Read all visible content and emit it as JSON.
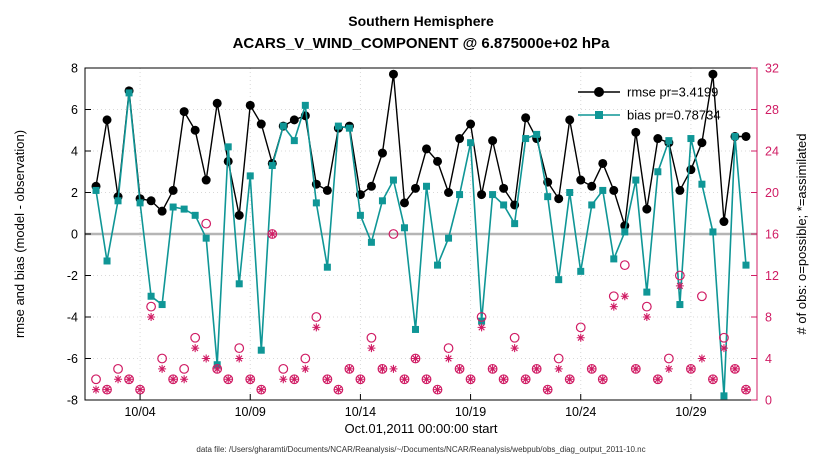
{
  "title": {
    "line1": "Southern Hemisphere",
    "line2": "ACARS_V_WIND_COMPONENT @ 6.875000e+02 hPa"
  },
  "footer": {
    "data_file": "data file: /Users/gharamti/Documents/NCAR/Reanalysis/~/Documents/NCAR/Reanalysis/webpub/obs_diag_output_2011-10.nc"
  },
  "colors": {
    "rmse": "#000000",
    "bias": "#0f9696",
    "obs": "#d01c64",
    "zero_line": "#b5b5b5",
    "grid": "#d9d9d9"
  },
  "chart_data": {
    "type": "line",
    "title": "Southern Hemisphere",
    "subtitle": "ACARS_V_WIND_COMPONENT @ 6.875000e+02 hPa",
    "xlabel": "Oct.01,2011 00:00:00 start",
    "ylabel_left": "rmse and bias (model - observation)",
    "ylabel_right": "# of obs: o=possible; *=assimilated",
    "xlim": [
      1.5,
      32
    ],
    "ylim_left": [
      -8,
      8
    ],
    "ylim_right": [
      0,
      32
    ],
    "xticks": [
      4,
      9,
      14,
      19,
      24,
      29
    ],
    "xtick_labels": [
      "10/04",
      "10/09",
      "10/14",
      "10/19",
      "10/24",
      "10/29"
    ],
    "yticks_left": [
      -8,
      -6,
      -4,
      -2,
      0,
      2,
      4,
      6,
      8
    ],
    "yticks_right": [
      0,
      4,
      8,
      12,
      16,
      20,
      24,
      28,
      32
    ],
    "grid": true,
    "legend_position": "top-right",
    "zero_line": {
      "y": 0
    },
    "x_days": [
      2,
      2.5,
      3,
      3.5,
      4,
      4.5,
      5,
      5.5,
      6,
      6.5,
      7,
      7.5,
      8,
      8.5,
      9,
      9.5,
      10,
      10.5,
      11,
      11.5,
      12,
      12.5,
      13,
      13.5,
      14,
      14.5,
      15,
      15.5,
      16,
      16.5,
      17,
      17.5,
      18,
      18.5,
      19,
      19.5,
      20,
      20.5,
      21,
      21.5,
      22,
      22.5,
      23,
      23.5,
      24,
      24.5,
      25,
      25.5,
      26,
      26.5,
      27,
      27.5,
      28,
      28.5,
      29,
      29.5,
      30,
      30.5,
      31,
      31.5
    ],
    "series": [
      {
        "name": "rmse pr=3.4199",
        "type": "line",
        "marker": "circle-filled",
        "axis": "left",
        "color": "#000000",
        "values": [
          2.3,
          5.5,
          1.8,
          6.9,
          1.7,
          1.6,
          1.1,
          2.1,
          5.9,
          5.0,
          2.6,
          6.3,
          3.5,
          0.9,
          6.2,
          5.3,
          3.4,
          5.2,
          5.5,
          5.7,
          2.4,
          2.1,
          5.1,
          5.2,
          1.9,
          2.3,
          3.9,
          7.7,
          1.5,
          2.2,
          4.1,
          3.5,
          2.0,
          4.6,
          5.3,
          1.9,
          4.5,
          2.2,
          1.4,
          5.6,
          4.6,
          2.5,
          1.7,
          5.5,
          2.6,
          2.3,
          3.4,
          2.1,
          0.4,
          4.9,
          1.2,
          4.6,
          4.4,
          2.1,
          3.1,
          4.4,
          7.7,
          0.6,
          4.7,
          4.7
        ]
      },
      {
        "name": "bias pr=0.78734",
        "type": "line",
        "marker": "square-filled",
        "axis": "left",
        "color": "#0f9696",
        "values": [
          2.1,
          -1.3,
          1.6,
          6.8,
          1.5,
          -3.0,
          -3.4,
          1.3,
          1.2,
          0.9,
          -0.2,
          -6.3,
          4.2,
          -2.4,
          2.8,
          -5.6,
          3.3,
          5.2,
          4.5,
          6.2,
          1.5,
          -1.6,
          5.2,
          5.1,
          0.9,
          -0.4,
          1.6,
          2.6,
          0.3,
          -4.6,
          2.3,
          -1.5,
          -0.2,
          1.9,
          4.4,
          -4.2,
          1.9,
          1.4,
          0.5,
          4.6,
          4.8,
          1.8,
          -2.2,
          2.0,
          -1.8,
          1.4,
          2.1,
          -1.2,
          0.1,
          2.6,
          -2.8,
          3.0,
          4.5,
          -3.4,
          4.6,
          2.4,
          0.1,
          -7.8,
          4.7,
          -1.5
        ]
      },
      {
        "name": "possible",
        "type": "scatter",
        "marker": "circle-open",
        "axis": "right",
        "color": "#d01c64",
        "values": [
          2,
          1,
          3,
          2,
          1,
          9,
          4,
          2,
          3,
          6,
          17,
          3,
          2,
          5,
          2,
          1,
          16,
          3,
          2,
          4,
          8,
          2,
          1,
          3,
          2,
          6,
          3,
          16,
          2,
          4,
          2,
          1,
          5,
          3,
          2,
          8,
          3,
          2,
          6,
          2,
          3,
          1,
          4,
          2,
          7,
          3,
          2,
          10,
          13,
          3,
          9,
          2,
          4,
          12,
          3,
          10,
          2,
          6,
          3,
          1
        ]
      },
      {
        "name": "assimilated",
        "type": "scatter",
        "marker": "asterisk",
        "axis": "right",
        "color": "#d01c64",
        "values": [
          1,
          1,
          2,
          2,
          1,
          8,
          3,
          2,
          2,
          5,
          4,
          3,
          2,
          4,
          2,
          1,
          16,
          2,
          2,
          3,
          7,
          2,
          1,
          3,
          2,
          5,
          3,
          3,
          2,
          4,
          2,
          1,
          4,
          3,
          2,
          7,
          3,
          2,
          5,
          2,
          3,
          1,
          3,
          2,
          6,
          3,
          2,
          9,
          10,
          3,
          8,
          2,
          3,
          11,
          3,
          4,
          2,
          5,
          3,
          1
        ]
      }
    ]
  },
  "legend": {
    "items": [
      {
        "label": "rmse pr=3.4199"
      },
      {
        "label": "bias pr=0.78734"
      }
    ]
  }
}
